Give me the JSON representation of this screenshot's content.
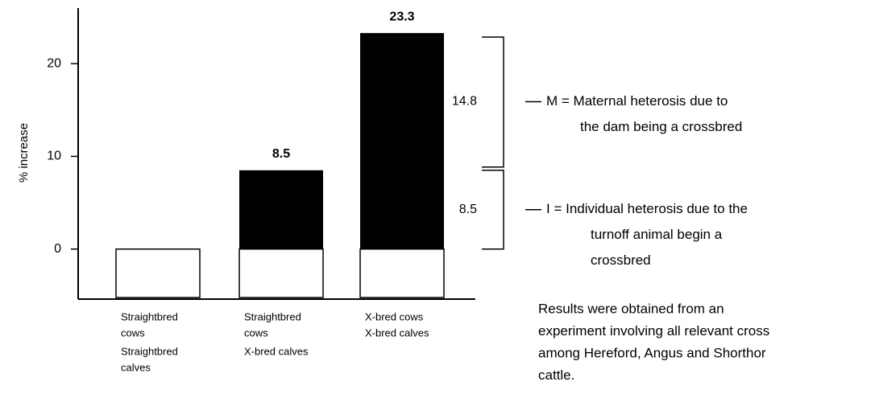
{
  "chart_data": {
    "type": "bar",
    "y_label": "% increase",
    "categories": [
      [
        "Straightbred",
        "cows",
        "Straightbred",
        "calves"
      ],
      [
        "Straightbred",
        "cows",
        "X-bred calves"
      ],
      [
        "X-bred cows",
        "X-bred calves"
      ]
    ],
    "values": [
      0,
      8.5,
      23.3
    ],
    "value_labels": [
      null,
      "8.5",
      "23.3"
    ],
    "color": "#000000",
    "ylim": [
      -5.4,
      26
    ],
    "yticks": [
      0,
      10,
      20
    ],
    "brackets": [
      {
        "value": 8.5,
        "legend": [
          "I = Individual heterosis due to the",
          "turnoff animal begin a",
          "crossbred"
        ]
      },
      {
        "value": 14.8,
        "legend": [
          "M = Maternal heterosis due to",
          "the dam being a crossbred"
        ]
      }
    ],
    "note": [
      "Results were obtained from an",
      "experiment involving all relevant cross",
      "among Hereford, Angus and Shorthor",
      "cattle."
    ]
  }
}
